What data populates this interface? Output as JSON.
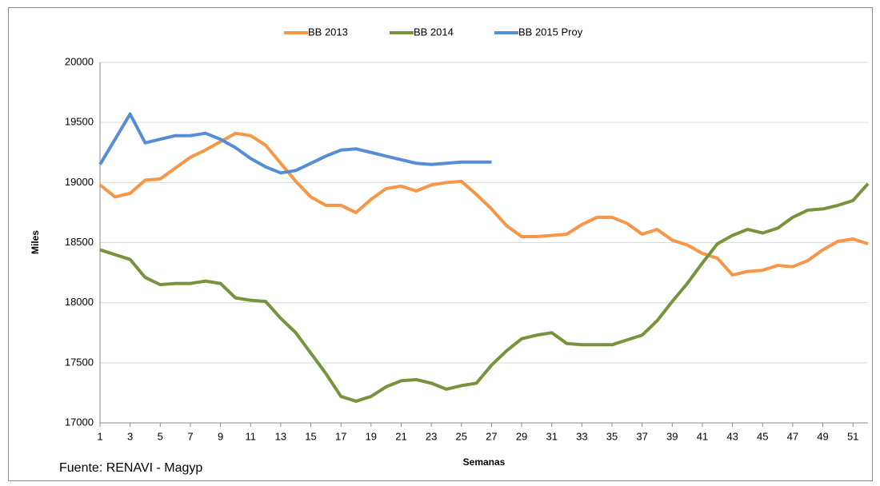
{
  "chart_data": {
    "type": "line",
    "note": "Fuente: RENAVI - Magyp",
    "xlabel": "Semanas",
    "ylabel": "Miles",
    "x": [
      1,
      2,
      3,
      4,
      5,
      6,
      7,
      8,
      9,
      10,
      11,
      12,
      13,
      14,
      15,
      16,
      17,
      18,
      19,
      20,
      21,
      22,
      23,
      24,
      25,
      26,
      27,
      28,
      29,
      30,
      31,
      32,
      33,
      34,
      35,
      36,
      37,
      38,
      39,
      40,
      41,
      42,
      43,
      44,
      45,
      46,
      47,
      48,
      49,
      50,
      51,
      52
    ],
    "xlim": [
      1,
      52
    ],
    "xticks": [
      1,
      3,
      5,
      7,
      9,
      11,
      13,
      15,
      17,
      19,
      21,
      23,
      25,
      27,
      29,
      31,
      33,
      35,
      37,
      39,
      41,
      43,
      45,
      47,
      49,
      51
    ],
    "ylim": [
      17000,
      20000
    ],
    "yticks": [
      17000,
      17500,
      18000,
      18500,
      19000,
      19500,
      20000
    ],
    "grid": true,
    "legend": "top",
    "series": [
      {
        "name": "BB 2013",
        "color": "#f79646",
        "values": [
          18980,
          18880,
          18910,
          19020,
          19030,
          19120,
          19210,
          19270,
          19340,
          19410,
          19390,
          19310,
          19160,
          19010,
          18880,
          18810,
          18810,
          18750,
          18860,
          18950,
          18970,
          18930,
          18980,
          19000,
          19010,
          18900,
          18780,
          18640,
          18550,
          18550,
          18560,
          18570,
          18650,
          18710,
          18710,
          18660,
          18570,
          18610,
          18520,
          18480,
          18410,
          18370,
          18230,
          18260,
          18270,
          18310,
          18300,
          18350,
          18440,
          18510,
          18530,
          18490
        ]
      },
      {
        "name": "BB 2014",
        "color": "#77933c",
        "values": [
          18440,
          18400,
          18360,
          18210,
          18150,
          18160,
          18160,
          18180,
          18160,
          18040,
          18020,
          18010,
          17870,
          17750,
          17580,
          17410,
          17220,
          17180,
          17220,
          17300,
          17350,
          17360,
          17330,
          17280,
          17310,
          17330,
          17480,
          17600,
          17700,
          17730,
          17750,
          17660,
          17650,
          17650,
          17650,
          17690,
          17730,
          17850,
          18010,
          18160,
          18330,
          18490,
          18560,
          18610,
          18580,
          18620,
          18710,
          18770,
          18780,
          18810,
          18850,
          18990
        ]
      },
      {
        "name": "BB 2015 Proy",
        "color": "#558ed5",
        "values": [
          19150,
          19360,
          19570,
          19330,
          19360,
          19390,
          19390,
          19410,
          19360,
          19290,
          19200,
          19130,
          19080,
          19100,
          19160,
          19220,
          19270,
          19280,
          19250,
          19220,
          19190,
          19160,
          19150,
          19160,
          19170,
          19170,
          19170,
          null,
          null,
          null,
          null,
          null,
          null,
          null,
          null,
          null,
          null,
          null,
          null,
          null,
          null,
          null,
          null,
          null,
          null,
          null,
          null,
          null,
          null,
          null,
          null,
          null
        ]
      }
    ]
  }
}
